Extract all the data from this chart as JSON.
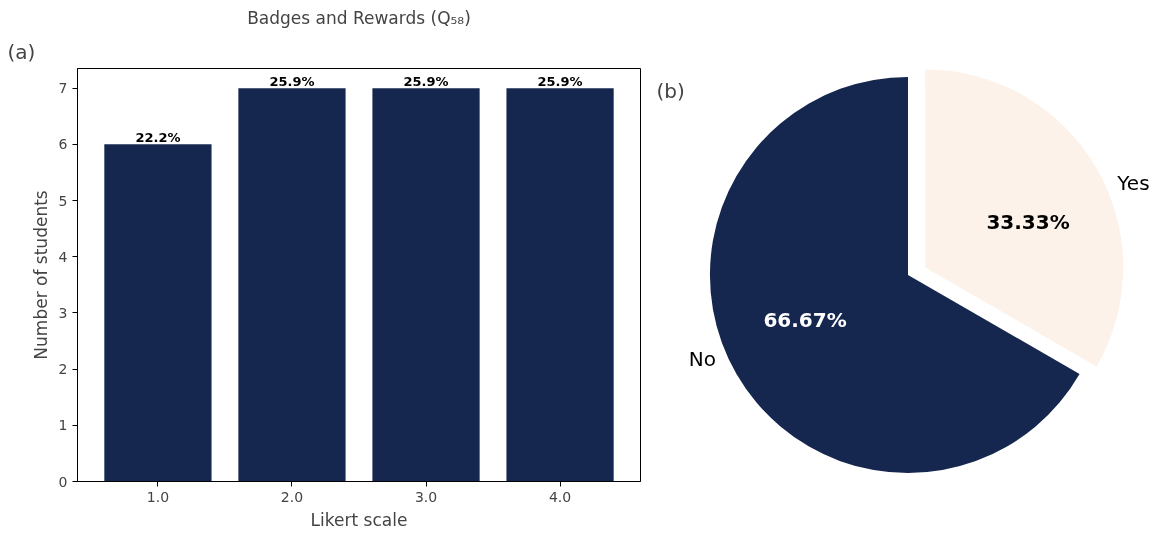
{
  "chart_data": [
    {
      "type": "bar",
      "title": "Badges and Rewards (Q₅₈)",
      "xlabel": "Likert scale",
      "ylabel": "Number of students",
      "categories": [
        "1.0",
        "2.0",
        "3.0",
        "4.0"
      ],
      "values": [
        6,
        7,
        7,
        7
      ],
      "color": "#16274f",
      "ylim": [
        0,
        7.35
      ],
      "yticks": [
        0,
        1,
        2,
        3,
        4,
        5,
        6,
        7
      ],
      "grid": false,
      "annotations": [
        "(a)",
        {
          "text": "22.2%",
          "x": "1.0",
          "y": 6
        },
        {
          "text": "25.9%",
          "x": "2.0",
          "y": 7
        },
        {
          "text": "25.9%",
          "x": "3.0",
          "y": 7
        },
        {
          "text": "25.9%",
          "x": "4.0",
          "y": 7
        }
      ]
    },
    {
      "type": "pie",
      "categories": [
        "Yes",
        "No"
      ],
      "values": [
        33.33,
        66.67
      ],
      "colors": [
        "#fdf2e9",
        "#16274f"
      ],
      "value_labels": [
        "33.33%",
        "66.67%"
      ],
      "annotations": [
        "(b)"
      ]
    }
  ]
}
